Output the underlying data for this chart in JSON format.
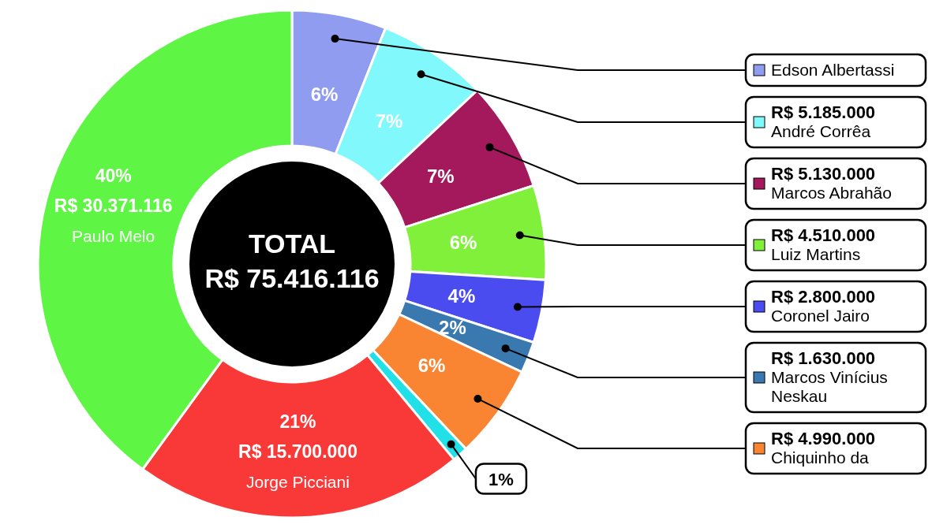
{
  "chart_data": {
    "type": "donut",
    "legend": "right",
    "categories": [
      "Edson Albertassi",
      "André Corrêa",
      "Marcos Abrahão",
      "Luiz Martins",
      "Coronel Jairo",
      "Marcos Vinícius Neskau",
      "Chiquinho da",
      null,
      "Jorge Picciani",
      "Paulo Melo"
    ],
    "values": [
      6,
      7,
      7,
      6,
      4,
      2,
      6,
      1,
      21,
      40
    ],
    "value_labels": [
      "6%",
      "7%",
      "7%",
      "6%",
      "4%",
      "2%",
      "6%",
      "1%",
      "21%",
      "40%"
    ],
    "colors": [
      "#8f9cf0",
      "#80f8fc",
      "#a3195b",
      "#80f03a",
      "#4a4cf0",
      "#3a78b0",
      "#f98533",
      "#22e0e8",
      "#f93838",
      "#5ef545"
    ],
    "annotations": [
      "TOTAL",
      "R$ 75.416.116",
      {
        "text": "R$ 5.185.000",
        "x": "André Corrêa"
      },
      {
        "text": "R$ 5.130.000",
        "x": "Marcos Abrahão"
      },
      {
        "text": "R$ 4.510.000",
        "x": "Luiz Martins"
      },
      {
        "text": "R$ 2.800.000",
        "x": "Coronel Jairo"
      },
      {
        "text": "R$ 1.630.000",
        "x": "Marcos Vinícius Neskau"
      },
      {
        "text": "R$ 4.990.000",
        "x": "Chiquinho da"
      },
      {
        "text": "R$ 15.700.000",
        "x": "Jorge Picciani"
      },
      {
        "text": "R$ 30.371.116",
        "x": "Paulo Melo"
      }
    ]
  }
}
